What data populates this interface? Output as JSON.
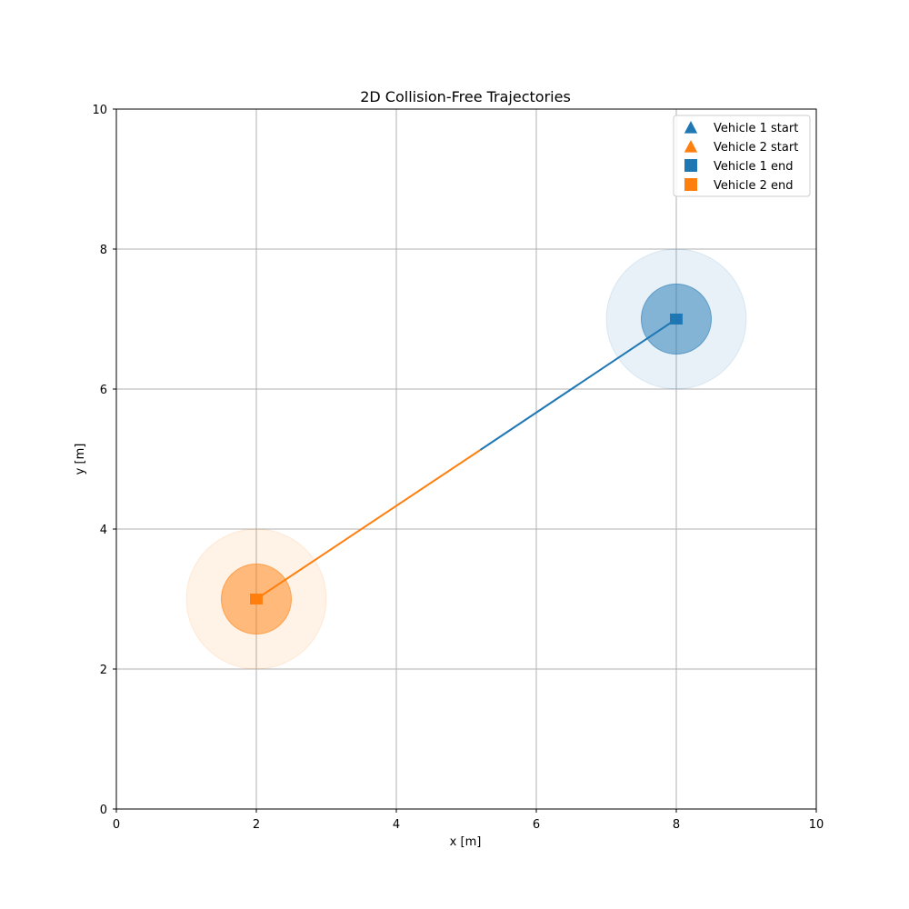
{
  "chart_data": {
    "type": "scatter",
    "title": "2D Collision-Free Trajectories",
    "xlabel": "x [m]",
    "ylabel": "y [m]",
    "xlim": [
      0,
      10
    ],
    "ylim": [
      0,
      10
    ],
    "xticks": [
      0,
      2,
      4,
      6,
      8,
      10
    ],
    "yticks": [
      0,
      2,
      4,
      6,
      8,
      10
    ],
    "xtick_labels": [
      "0",
      "2",
      "4",
      "6",
      "8",
      "10"
    ],
    "ytick_labels": [
      "0",
      "2",
      "4",
      "6",
      "8",
      "10"
    ],
    "grid": true,
    "legend_position": "top-right",
    "series": [
      {
        "vehicle": 1,
        "color": "#1f77b4",
        "trajectory": [
          [
            8,
            7
          ],
          [
            5.2,
            5.13
          ]
        ],
        "start": [
          8,
          7
        ],
        "end": [
          8,
          7
        ],
        "safety_radius": 0.5,
        "influence_radius": 1.0
      },
      {
        "vehicle": 2,
        "color": "#ff7f0e",
        "trajectory": [
          [
            2,
            3
          ],
          [
            5.2,
            5.13
          ]
        ],
        "start": [
          2,
          3
        ],
        "end": [
          2,
          3
        ],
        "safety_radius": 0.5,
        "influence_radius": 1.0
      }
    ],
    "legend": [
      {
        "label": "Vehicle 1 start",
        "marker": "triangle",
        "color": "#1f77b4"
      },
      {
        "label": "Vehicle 2 start",
        "marker": "triangle",
        "color": "#ff7f0e"
      },
      {
        "label": "Vehicle 1 end",
        "marker": "square",
        "color": "#1f77b4"
      },
      {
        "label": "Vehicle 2 end",
        "marker": "square",
        "color": "#ff7f0e"
      }
    ]
  }
}
